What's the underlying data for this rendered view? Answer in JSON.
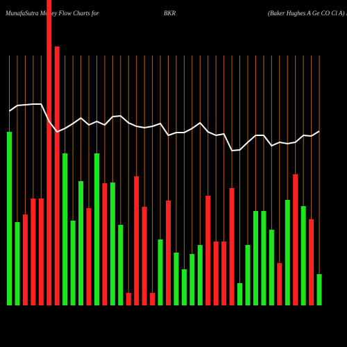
{
  "chart_data": {
    "type": "bar",
    "title_parts": [
      "MunafaSutra  Money Flow  Charts for",
      "BKR",
      "(Baker Hughes A Ge   CO Cl A) M"
    ],
    "values": [
      250,
      120,
      131,
      154,
      154,
      440,
      373,
      219,
      122,
      179,
      140,
      219,
      176,
      177,
      116,
      18,
      186,
      142,
      18,
      95,
      151,
      76,
      52,
      74,
      87,
      158,
      92,
      92,
      169,
      32,
      87,
      136,
      136,
      109,
      61,
      152,
      189,
      143,
      124,
      45
    ],
    "colors": [
      "#1ee61e",
      "#1ee61e",
      "#ff2020",
      "#ff2020",
      "#ff2020",
      "#ff2020",
      "#ff2020",
      "#1ee61e",
      "#1ee61e",
      "#1ee61e",
      "#ff2020",
      "#1ee61e",
      "#ff2020",
      "#1ee61e",
      "#1ee61e",
      "#ff2020",
      "#ff2020",
      "#ff2020",
      "#ff2020",
      "#1ee61e",
      "#ff2020",
      "#1ee61e",
      "#1ee61e",
      "#1ee61e",
      "#1ee61e",
      "#ff2020",
      "#ff2020",
      "#ff2020",
      "#ff2020",
      "#1ee61e",
      "#1ee61e",
      "#1ee61e",
      "#1ee61e",
      "#1ee61e",
      "#ff2020",
      "#1ee61e",
      "#ff2020",
      "#1ee61e",
      "#ff2020",
      "#1ee61e"
    ],
    "line_values": [
      280,
      288,
      289,
      290,
      290,
      265,
      250,
      255,
      262,
      270,
      260,
      265,
      260,
      272,
      273,
      263,
      258,
      256,
      258,
      262,
      245,
      249,
      249,
      255,
      263,
      250,
      245,
      247,
      223,
      224,
      235,
      245,
      245,
      230,
      235,
      233,
      235,
      245,
      244,
      251
    ],
    "line_color": "#ffffff",
    "ylim": [
      0,
      440
    ]
  }
}
